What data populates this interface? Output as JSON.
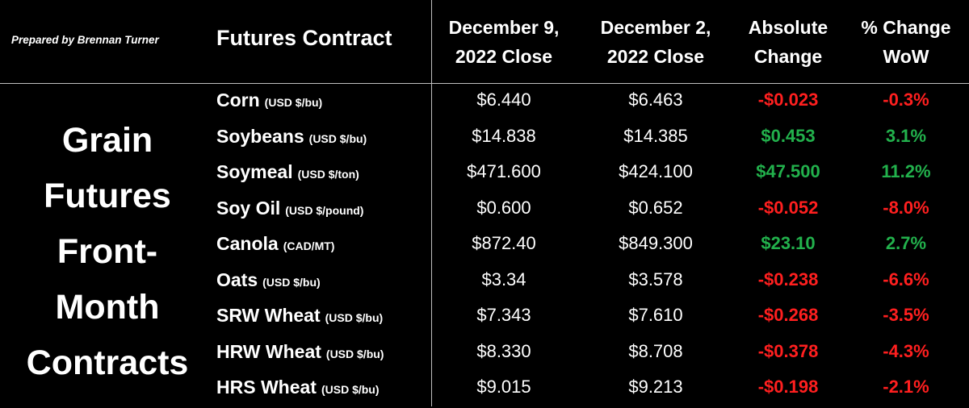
{
  "chart_data": {
    "type": "table",
    "credit": "Prepared by Brennan Turner",
    "title_lines": [
      "Grain",
      "Futures",
      "Front-",
      "Month",
      "Contracts"
    ],
    "columns": {
      "contract": "Futures Contract",
      "dec9": [
        "December 9,",
        "2022 Close"
      ],
      "dec2": [
        "December 2,",
        "2022 Close"
      ],
      "abs": [
        "Absolute",
        "Change"
      ],
      "pct": [
        "% Change",
        "WoW"
      ]
    },
    "rows": [
      {
        "name": "Corn",
        "unit": "(USD $/bu)",
        "dec9": "$6.440",
        "dec2": "$6.463",
        "abs": "-$0.023",
        "pct": "-0.3%",
        "dir": "neg"
      },
      {
        "name": "Soybeans",
        "unit": "(USD $/bu)",
        "dec9": "$14.838",
        "dec2": "$14.385",
        "abs": "$0.453",
        "pct": "3.1%",
        "dir": "pos"
      },
      {
        "name": "Soymeal",
        "unit": "(USD $/ton)",
        "dec9": "$471.600",
        "dec2": "$424.100",
        "abs": "$47.500",
        "pct": "11.2%",
        "dir": "pos"
      },
      {
        "name": "Soy Oil",
        "unit": "(USD $/pound)",
        "dec9": "$0.600",
        "dec2": "$0.652",
        "abs": "-$0.052",
        "pct": "-8.0%",
        "dir": "neg"
      },
      {
        "name": "Canola",
        "unit": "(CAD/MT)",
        "dec9": "$872.40",
        "dec2": "$849.300",
        "abs": "$23.10",
        "pct": "2.7%",
        "dir": "pos"
      },
      {
        "name": "Oats",
        "unit": "(USD $/bu)",
        "dec9": "$3.34",
        "dec2": "$3.578",
        "abs": "-$0.238",
        "pct": "-6.6%",
        "dir": "neg"
      },
      {
        "name": "SRW Wheat",
        "unit": "(USD $/bu)",
        "dec9": "$7.343",
        "dec2": "$7.610",
        "abs": "-$0.268",
        "pct": "-3.5%",
        "dir": "neg"
      },
      {
        "name": "HRW Wheat",
        "unit": "(USD $/bu)",
        "dec9": "$8.330",
        "dec2": "$8.708",
        "abs": "-$0.378",
        "pct": "-4.3%",
        "dir": "neg"
      },
      {
        "name": "HRS Wheat",
        "unit": "(USD $/bu)",
        "dec9": "$9.015",
        "dec2": "$9.213",
        "abs": "-$0.198",
        "pct": "-2.1%",
        "dir": "neg"
      }
    ],
    "colors": {
      "background": "#000000",
      "text": "#ffffff",
      "negative": "#ff1f1f",
      "positive": "#22b14c"
    }
  }
}
